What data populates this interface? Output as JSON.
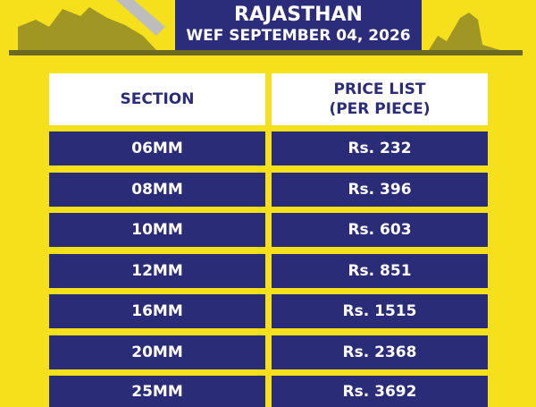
{
  "header": {
    "title": "RAJASTHAN",
    "subtitle": "WEF SEPTEMBER 04, 2026"
  },
  "table": {
    "columns": {
      "section": "SECTION",
      "price": [
        "PRICE LIST",
        "(PER PIECE)"
      ]
    },
    "rows": [
      [
        "06MM",
        "Rs. 232"
      ],
      [
        "08MM",
        "Rs. 396"
      ],
      [
        "10MM",
        "Rs. 603"
      ],
      [
        "12MM",
        "Rs. 851"
      ],
      [
        "16MM",
        "Rs. 1515"
      ],
      [
        "20MM",
        "Rs. 2368"
      ],
      [
        "25MM",
        "Rs. 3692"
      ]
    ]
  }
}
